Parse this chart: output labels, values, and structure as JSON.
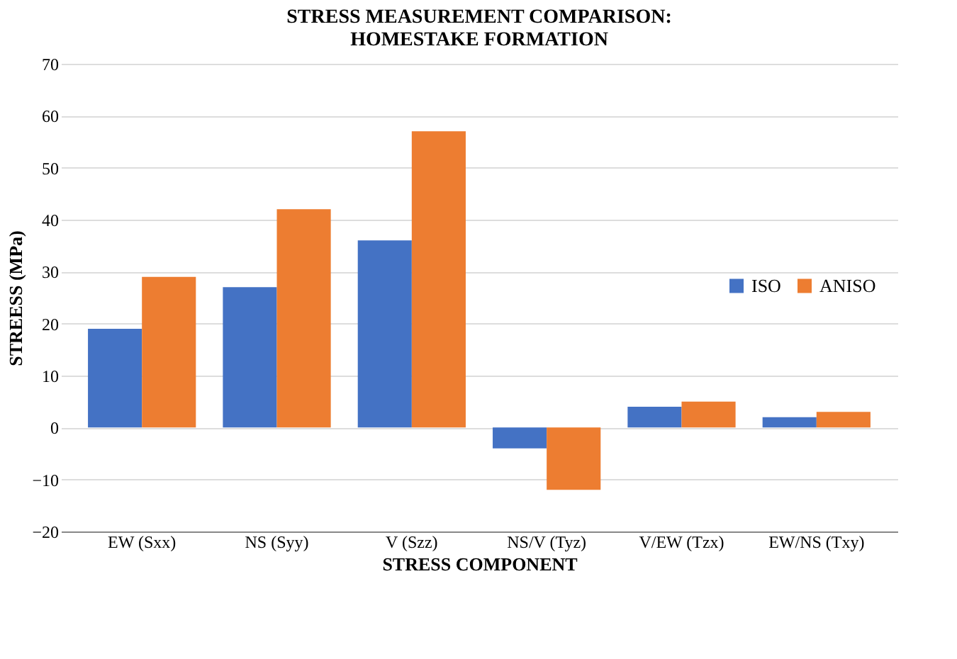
{
  "chart_data": {
    "type": "bar",
    "title": "STRESS MEASUREMENT COMPARISON:\nHOMESTAKE FORMATION",
    "xlabel": "STRESS COMPONENT",
    "ylabel": "STREESS (MPa)",
    "categories": [
      "EW (Sxx)",
      "NS (Syy)",
      "V  (Szz)",
      "NS/V  (Tyz)",
      "V/EW (Tzx)",
      "EW/NS (Txy)"
    ],
    "series": [
      {
        "name": "ISO",
        "color": "#4472c4",
        "values": [
          19,
          27,
          36,
          -4,
          4,
          2
        ]
      },
      {
        "name": "ANISO",
        "color": "#ed7d31",
        "values": [
          29,
          42,
          57,
          -12,
          5,
          3
        ]
      }
    ],
    "ylim": [
      -20,
      70
    ],
    "yticks": [
      -20,
      -10,
      0,
      10,
      20,
      30,
      40,
      50,
      60,
      70
    ],
    "grid": "y",
    "legend": "right"
  }
}
